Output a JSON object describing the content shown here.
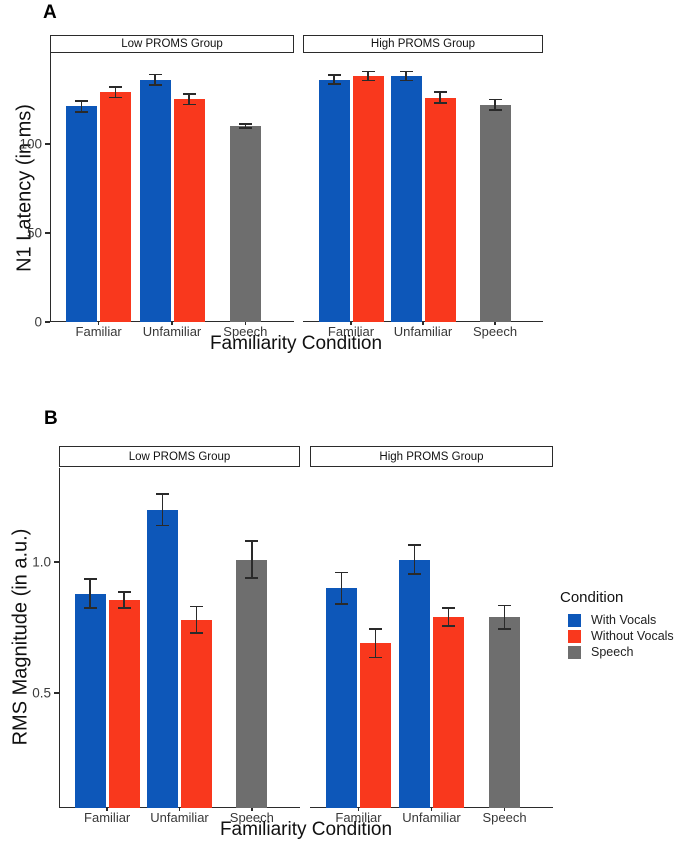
{
  "legend": {
    "title": "Condition",
    "items": [
      {
        "label": "With Vocals",
        "color": "#0D57B9"
      },
      {
        "label": "Without Vocals",
        "color": "#F9381D"
      },
      {
        "label": "Speech",
        "color": "#6E6E6E"
      }
    ]
  },
  "series_colors": {
    "With Vocals": "#0D57B9",
    "Without Vocals": "#F9381D",
    "Speech": "#6E6E6E"
  },
  "chart_data": [
    {
      "id": "A",
      "type": "bar",
      "panel_label": "A",
      "xlabel": "Familiarity Condition",
      "ylabel": "N1 Latency (in ms)",
      "ylim": [
        0,
        151
      ],
      "grid": false,
      "legend_shown": false,
      "yticks": [
        {
          "value": 0,
          "label": "0"
        },
        {
          "value": 50,
          "label": "50"
        },
        {
          "value": 100,
          "label": "100"
        }
      ],
      "facets": [
        {
          "label": "Low PROMS Group",
          "groups": [
            {
              "category": "Familiar",
              "bars": [
                {
                  "series": "With Vocals",
                  "value": 121,
                  "error": 3
                },
                {
                  "series": "Without Vocals",
                  "value": 129,
                  "error": 3
                }
              ]
            },
            {
              "category": "Unfamiliar",
              "bars": [
                {
                  "series": "With Vocals",
                  "value": 136,
                  "error": 3
                },
                {
                  "series": "Without Vocals",
                  "value": 125,
                  "error": 3
                }
              ]
            },
            {
              "category": "Speech",
              "bars": [
                {
                  "series": "Speech",
                  "value": 110,
                  "error": 1
                }
              ]
            }
          ]
        },
        {
          "label": "High PROMS Group",
          "groups": [
            {
              "category": "Familiar",
              "bars": [
                {
                  "series": "With Vocals",
                  "value": 136,
                  "error": 2.5
                },
                {
                  "series": "Without Vocals",
                  "value": 138,
                  "error": 2.5
                }
              ]
            },
            {
              "category": "Unfamiliar",
              "bars": [
                {
                  "series": "With Vocals",
                  "value": 138,
                  "error": 2.5
                },
                {
                  "series": "Without Vocals",
                  "value": 126,
                  "error": 3
                }
              ]
            },
            {
              "category": "Speech",
              "bars": [
                {
                  "series": "Speech",
                  "value": 122,
                  "error": 3
                }
              ]
            }
          ]
        }
      ]
    },
    {
      "id": "B",
      "type": "bar",
      "panel_label": "B",
      "xlabel": "Familiarity Condition",
      "ylabel": "RMS Magnitude (in a.u.)",
      "ylim": [
        0.06,
        1.36
      ],
      "grid": false,
      "legend_shown": true,
      "legend_position": "right",
      "yticks": [
        {
          "value": 0.5,
          "label": "0.5"
        },
        {
          "value": 1.0,
          "label": "1.0"
        }
      ],
      "facets": [
        {
          "label": "Low PROMS Group",
          "groups": [
            {
              "category": "Familiar",
              "bars": [
                {
                  "series": "With Vocals",
                  "value": 0.88,
                  "error": 0.055
                },
                {
                  "series": "Without Vocals",
                  "value": 0.855,
                  "error": 0.03
                }
              ]
            },
            {
              "category": "Unfamiliar",
              "bars": [
                {
                  "series": "With Vocals",
                  "value": 1.2,
                  "error": 0.06
                },
                {
                  "series": "Without Vocals",
                  "value": 0.78,
                  "error": 0.05
                }
              ]
            },
            {
              "category": "Speech",
              "bars": [
                {
                  "series": "Speech",
                  "value": 1.01,
                  "error": 0.07
                }
              ]
            }
          ]
        },
        {
          "label": "High PROMS Group",
          "groups": [
            {
              "category": "Familiar",
              "bars": [
                {
                  "series": "With Vocals",
                  "value": 0.9,
                  "error": 0.06
                },
                {
                  "series": "Without Vocals",
                  "value": 0.69,
                  "error": 0.055
                }
              ]
            },
            {
              "category": "Unfamiliar",
              "bars": [
                {
                  "series": "With Vocals",
                  "value": 1.01,
                  "error": 0.055
                },
                {
                  "series": "Without Vocals",
                  "value": 0.79,
                  "error": 0.035
                }
              ]
            },
            {
              "category": "Speech",
              "bars": [
                {
                  "series": "Speech",
                  "value": 0.79,
                  "error": 0.045
                }
              ]
            }
          ]
        }
      ]
    }
  ]
}
